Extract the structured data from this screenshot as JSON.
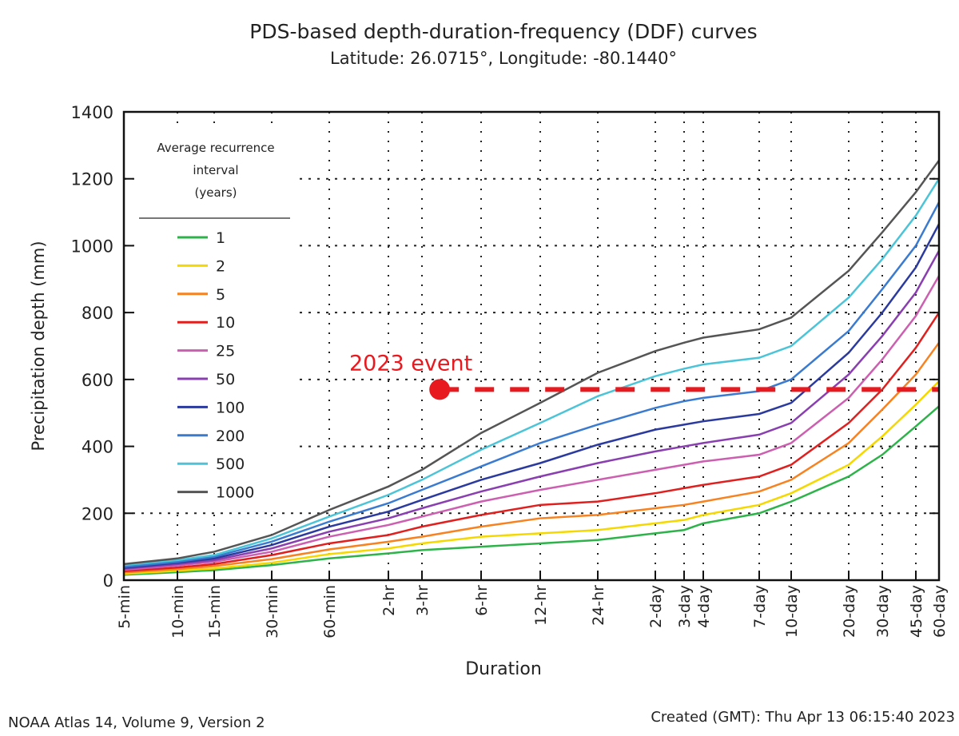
{
  "chart_data": {
    "type": "line",
    "title": "PDS-based depth-duration-frequency (DDF) curves",
    "subtitle": "Latitude: 26.0715°, Longitude: -80.1440°",
    "xlabel": "Duration",
    "ylabel": "Precipitation depth (mm)",
    "ylim": [
      0,
      1400
    ],
    "yticks": [
      0,
      200,
      400,
      600,
      800,
      1000,
      1200,
      1400
    ],
    "grid": true,
    "categories": [
      "5-min",
      "10-min",
      "15-min",
      "30-min",
      "60-min",
      "2-hr",
      "3-hr",
      "6-hr",
      "12-hr",
      "24-hr",
      "2-day",
      "3-day",
      "4-day",
      "7-day",
      "10-day",
      "20-day",
      "30-day",
      "45-day",
      "60-day"
    ],
    "legend": {
      "title_lines": [
        "Average recurrence",
        "interval",
        "(years)"
      ],
      "placement": "top-left"
    },
    "series": [
      {
        "name": "1",
        "color": "#2db34a",
        "values": [
          16,
          24,
          30,
          45,
          65,
          80,
          90,
          100,
          110,
          120,
          140,
          150,
          170,
          200,
          235,
          310,
          375,
          460,
          520
        ]
      },
      {
        "name": "2",
        "color": "#f5d800",
        "values": [
          19,
          28,
          35,
          52,
          78,
          95,
          110,
          130,
          140,
          150,
          170,
          180,
          195,
          225,
          260,
          345,
          430,
          525,
          595
        ]
      },
      {
        "name": "5",
        "color": "#f7821f",
        "values": [
          23,
          33,
          42,
          63,
          92,
          115,
          130,
          160,
          185,
          195,
          215,
          225,
          235,
          265,
          300,
          410,
          510,
          615,
          710
        ]
      },
      {
        "name": "10",
        "color": "#e0201f",
        "values": [
          27,
          38,
          48,
          75,
          110,
          135,
          160,
          195,
          225,
          235,
          260,
          275,
          285,
          310,
          345,
          470,
          570,
          695,
          800
        ]
      },
      {
        "name": "25",
        "color": "#cc5fb0",
        "values": [
          31,
          44,
          55,
          85,
          130,
          165,
          190,
          235,
          270,
          300,
          330,
          345,
          355,
          375,
          410,
          545,
          660,
          790,
          910
        ]
      },
      {
        "name": "50",
        "color": "#8a3fb0",
        "values": [
          34,
          48,
          60,
          95,
          145,
          185,
          215,
          265,
          310,
          350,
          385,
          400,
          410,
          435,
          470,
          615,
          730,
          860,
          985
        ]
      },
      {
        "name": "100",
        "color": "#2b3a9e",
        "values": [
          37,
          52,
          65,
          105,
          160,
          205,
          240,
          300,
          350,
          405,
          450,
          465,
          475,
          497,
          530,
          680,
          800,
          935,
          1065
        ]
      },
      {
        "name": "200",
        "color": "#3a7bd0",
        "values": [
          40,
          55,
          70,
          115,
          175,
          230,
          270,
          340,
          410,
          465,
          515,
          535,
          545,
          565,
          600,
          745,
          870,
          1000,
          1130
        ]
      },
      {
        "name": "500",
        "color": "#4cc4d8",
        "values": [
          45,
          60,
          75,
          125,
          190,
          255,
          300,
          390,
          470,
          550,
          610,
          632,
          645,
          665,
          700,
          845,
          960,
          1090,
          1200
        ]
      },
      {
        "name": "1000",
        "color": "#555555",
        "values": [
          48,
          65,
          85,
          135,
          210,
          280,
          330,
          440,
          530,
          620,
          685,
          710,
          725,
          750,
          785,
          925,
          1040,
          1160,
          1255
        ]
      }
    ],
    "annotation": {
      "label": "2023 event",
      "value": 570,
      "x_index": 6.3,
      "color": "#e8191f"
    }
  },
  "footer": {
    "left": "NOAA Atlas 14, Volume 9, Version 2",
    "right": "Created (GMT): Thu Apr 13 06:15:40 2023"
  }
}
